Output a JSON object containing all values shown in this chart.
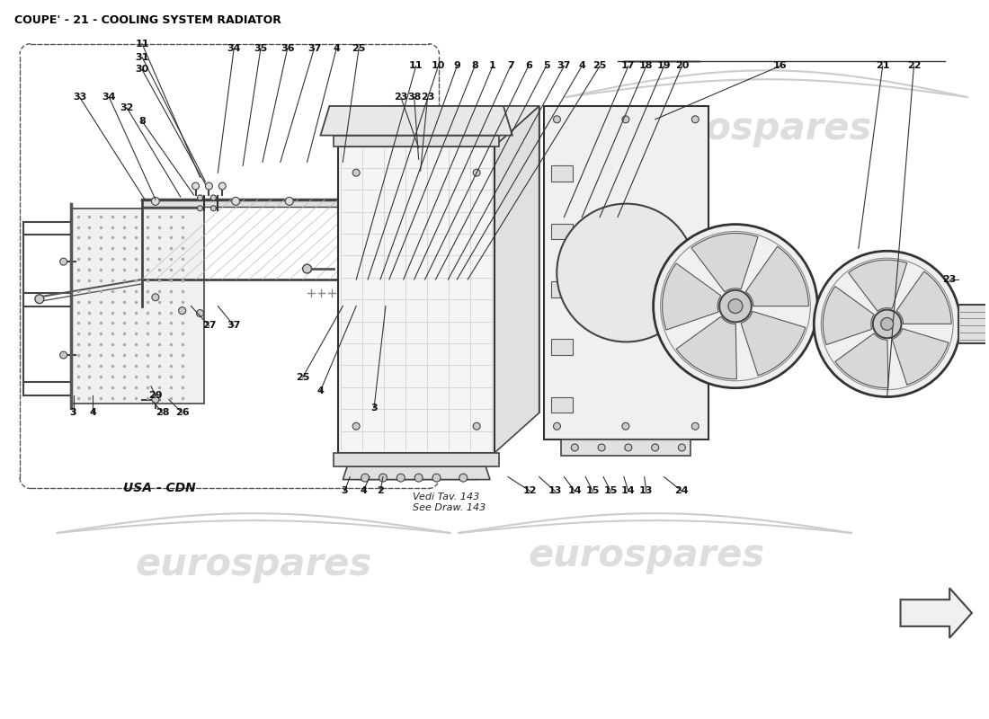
{
  "title": "COUPE' - 21 - COOLING SYSTEM RADIATOR",
  "bg_color": "#ffffff",
  "watermark_text": "eurospares",
  "watermark_color": "#d8d8d8",
  "usa_cdn_label": "USA - CDN",
  "vedi_label": "Vedi Tav. 143\nSee Draw. 143",
  "title_fontsize": 9,
  "label_fontsize": 8,
  "wm_fontsize": 30
}
